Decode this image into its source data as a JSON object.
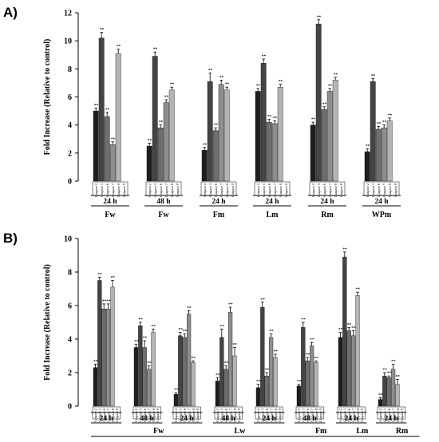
{
  "chart_data": [
    {
      "panel_label": "A)",
      "type": "bar",
      "title": "",
      "ylabel": "Fold Increase (Relative to control)",
      "ylim": [
        0,
        12
      ],
      "yticks": [
        0,
        2,
        4,
        6,
        8,
        10,
        12
      ],
      "bar_labels": [
        "Caspase 2",
        "Caspase 3",
        "Caspase 6",
        "Caspase 7",
        "Caspase 8",
        "Caspase 9"
      ],
      "significance_marker": "**",
      "time_groups": [
        {
          "label": "24 h",
          "span": [
            0,
            0
          ]
        },
        {
          "label": "48 h",
          "span": [
            1,
            1
          ]
        },
        {
          "label": "24 h",
          "span": [
            2,
            2
          ]
        },
        {
          "label": "24 h",
          "span": [
            3,
            3
          ]
        },
        {
          "label": "24 h",
          "span": [
            4,
            4
          ]
        },
        {
          "label": "24 h",
          "span": [
            5,
            5
          ]
        }
      ],
      "category_groups": [
        {
          "label": "Fw",
          "span": [
            0,
            0
          ]
        },
        {
          "label": "Fw",
          "span": [
            1,
            1
          ]
        },
        {
          "label": "Fm",
          "span": [
            2,
            2
          ]
        },
        {
          "label": "Lm",
          "span": [
            3,
            3
          ]
        },
        {
          "label": "Rm",
          "span": [
            4,
            4
          ]
        },
        {
          "label": "WPm",
          "span": [
            5,
            5
          ]
        }
      ],
      "clusters": [
        {
          "values": [
            5.0,
            10.2,
            4.6,
            2.6,
            9.1,
            null
          ],
          "errors": [
            0.2,
            0.4,
            0.3,
            0.2,
            0.3,
            0
          ]
        },
        {
          "values": [
            2.5,
            8.9,
            3.8,
            5.6,
            6.5,
            null
          ],
          "errors": [
            0.2,
            0.3,
            0.2,
            0.2,
            0.2,
            0
          ]
        },
        {
          "values": [
            2.2,
            7.1,
            3.6,
            6.9,
            6.5,
            null
          ],
          "errors": [
            0.2,
            0.6,
            0.2,
            0.3,
            0.2,
            0
          ]
        },
        {
          "values": [
            6.4,
            8.4,
            4.2,
            4.1,
            6.7,
            null
          ],
          "errors": [
            0.2,
            0.3,
            0.2,
            0.2,
            0.2,
            0
          ]
        },
        {
          "values": [
            4.0,
            11.2,
            5.1,
            6.4,
            7.2,
            null
          ],
          "errors": [
            0.2,
            0.3,
            0.2,
            0.2,
            0.2,
            0
          ]
        },
        {
          "values": [
            2.1,
            7.1,
            3.7,
            3.8,
            4.3,
            null
          ],
          "errors": [
            0.2,
            0.2,
            0.2,
            0.2,
            0.2,
            0
          ]
        }
      ],
      "bar_colors": [
        "#1e1e1e",
        "#444444",
        "#6e6e6e",
        "#8e8e8e",
        "#b4b4b4",
        "#d0d0d0"
      ]
    },
    {
      "panel_label": "B)",
      "type": "bar",
      "title": "",
      "ylabel": "Fold Increase (Relative to control)",
      "ylim": [
        0,
        10
      ],
      "yticks": [
        0,
        2,
        4,
        6,
        8,
        10
      ],
      "bar_labels": [
        "Caspase 2",
        "Caspase 3",
        "Caspase 6",
        "Caspase 7",
        "Caspase 8",
        "Caspase 9"
      ],
      "significance_marker": "**",
      "time_groups": [
        {
          "label": "24 h",
          "span": [
            0,
            0
          ]
        },
        {
          "label": "48 h",
          "span": [
            1,
            1
          ]
        },
        {
          "label": "24 h",
          "span": [
            2,
            2
          ]
        },
        {
          "label": "48 h",
          "span": [
            3,
            3
          ]
        },
        {
          "label": "24 h",
          "span": [
            4,
            4
          ]
        },
        {
          "label": "48 h",
          "span": [
            5,
            5
          ]
        },
        {
          "label": "24 h",
          "span": [
            6,
            6
          ]
        },
        {
          "label": "24 h",
          "span": [
            7,
            7
          ]
        }
      ],
      "category_groups": [
        {
          "label": "Fw",
          "span": [
            0,
            1
          ]
        },
        {
          "label": "Lw",
          "span": [
            2,
            3
          ]
        },
        {
          "label": "Fm",
          "span": [
            4,
            5
          ]
        },
        {
          "label": "Lm",
          "span": [
            6,
            6
          ]
        },
        {
          "label": "Rm",
          "span": [
            7,
            7
          ]
        }
      ],
      "clusters": [
        {
          "values": [
            2.3,
            7.5,
            5.8,
            5.8,
            7.1,
            null
          ],
          "errors": [
            0.2,
            0.2,
            0.3,
            0.3,
            0.4,
            0
          ]
        },
        {
          "values": [
            3.5,
            4.8,
            3.5,
            2.2,
            4.4,
            null
          ],
          "errors": [
            0.2,
            0.2,
            0.4,
            0.2,
            0.2,
            0
          ]
        },
        {
          "values": [
            0.7,
            4.2,
            4.1,
            5.5,
            2.6,
            null
          ],
          "errors": [
            0.1,
            0.2,
            0.2,
            0.2,
            0.1,
            0
          ]
        },
        {
          "values": [
            1.5,
            4.1,
            2.2,
            5.6,
            3.0,
            null
          ],
          "errors": [
            0.2,
            0.5,
            0.2,
            0.3,
            0.5,
            0
          ]
        },
        {
          "values": [
            1.1,
            5.9,
            1.8,
            4.1,
            2.9,
            null
          ],
          "errors": [
            0.2,
            0.3,
            0.2,
            0.2,
            0.2,
            0
          ]
        },
        {
          "values": [
            1.2,
            4.7,
            2.7,
            3.6,
            2.6,
            null
          ],
          "errors": [
            0.1,
            0.3,
            0.2,
            0.2,
            0.1,
            0
          ]
        },
        {
          "values": [
            4.1,
            8.9,
            4.5,
            4.2,
            6.6,
            null
          ],
          "errors": [
            0.3,
            0.3,
            0.2,
            0.3,
            0.2,
            0
          ]
        },
        {
          "values": [
            0.4,
            1.8,
            1.7,
            2.2,
            1.3,
            null
          ],
          "errors": [
            0.1,
            0.2,
            0.1,
            0.3,
            0.3,
            0
          ]
        }
      ],
      "bar_colors": [
        "#1e1e1e",
        "#444444",
        "#6e6e6e",
        "#8e8e8e",
        "#b4b4b4",
        "#d0d0d0"
      ]
    }
  ]
}
